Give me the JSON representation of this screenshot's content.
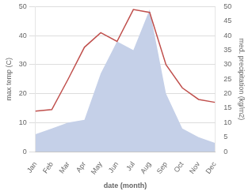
{
  "chart_data": {
    "type": "line",
    "categories": [
      "Jan",
      "Feb",
      "Mar",
      "Apr",
      "May",
      "Jun",
      "Jul",
      "Aug",
      "Sep",
      "Oct",
      "Nov",
      "Dec"
    ],
    "x_label": "date (month)",
    "y_label": "max temp (C)",
    "y2_label": "med. precipitation (kg/m2)",
    "series": [
      {
        "type": "area",
        "color": "#c5d0e8",
        "axis": "y2",
        "values": [
          6,
          8,
          10,
          11,
          27,
          38,
          35,
          49,
          20,
          8,
          5,
          3
        ]
      },
      {
        "type": "line",
        "color": "#c0504d",
        "values": [
          14,
          14.5,
          25,
          36,
          41,
          38,
          49,
          48,
          30,
          22,
          18,
          17
        ]
      }
    ],
    "ylim": [
      0,
      50
    ],
    "yticks": [
      0,
      10,
      20,
      30,
      40,
      50
    ],
    "y2lim": [
      0,
      50
    ],
    "y2ticks": [
      0,
      5,
      10,
      15,
      20,
      25,
      30,
      35,
      40,
      45,
      50
    ],
    "grid": true
  }
}
